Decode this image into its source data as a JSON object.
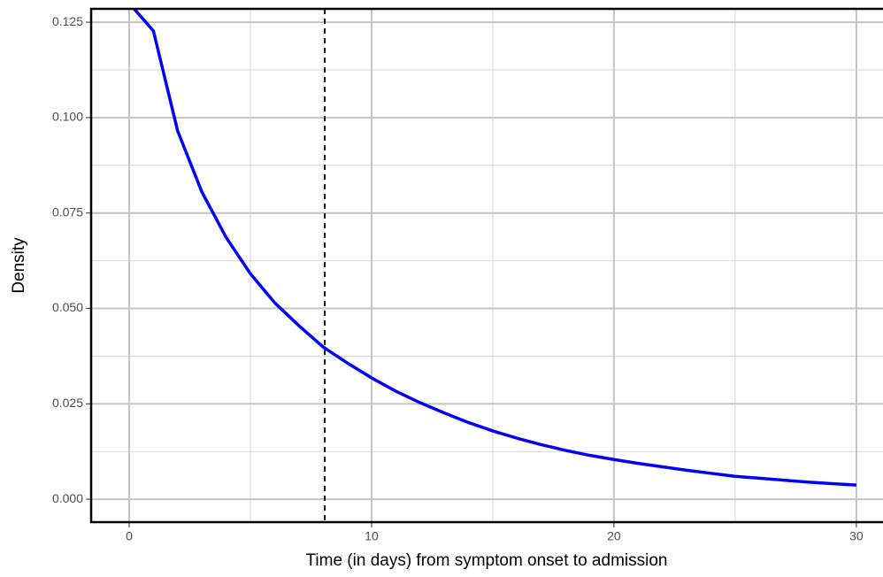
{
  "chart_data": {
    "type": "line",
    "x_label": "Time (in days) from symptom onset to admission",
    "y_label": "Density",
    "x": [
      0,
      1,
      2,
      3,
      4,
      5,
      6,
      7,
      8,
      9,
      10,
      11,
      12,
      13,
      14,
      15,
      16,
      17,
      18,
      19,
      20,
      21,
      22,
      23,
      24,
      25,
      26,
      27,
      28,
      29,
      30
    ],
    "series": [
      {
        "name": "Density",
        "color": "#0000ff",
        "values": [
          0.13,
          0.1227,
          0.0965,
          0.0805,
          0.0686,
          0.0591,
          0.0515,
          0.0455,
          0.0399,
          0.0357,
          0.0318,
          0.0283,
          0.0253,
          0.0226,
          0.0201,
          0.0179,
          0.016,
          0.0143,
          0.0128,
          0.0115,
          0.0104,
          0.0094,
          0.0085,
          0.0076,
          0.0068,
          0.006,
          0.0055,
          0.005,
          0.0045,
          0.0041,
          0.0037
        ]
      }
    ],
    "vline": 8.07,
    "xlim": [
      -1.57,
      31.1
    ],
    "ylim": [
      -0.006,
      0.1285
    ],
    "xticks": [
      0,
      10,
      20,
      30
    ],
    "yticks": [
      {
        "value": 0,
        "label": "0.000"
      },
      {
        "value": 0.025,
        "label": "0.025"
      },
      {
        "value": 0.05,
        "label": "0.050"
      },
      {
        "value": 0.075,
        "label": "0.075"
      },
      {
        "value": 0.1,
        "label": "0.100"
      },
      {
        "value": 0.125,
        "label": "0.125"
      }
    ],
    "x_minor_grid": [
      5,
      15,
      25
    ],
    "y_minor_grid": [
      0.0125,
      0.0375,
      0.0625,
      0.0875,
      0.1125
    ],
    "grid": true
  }
}
